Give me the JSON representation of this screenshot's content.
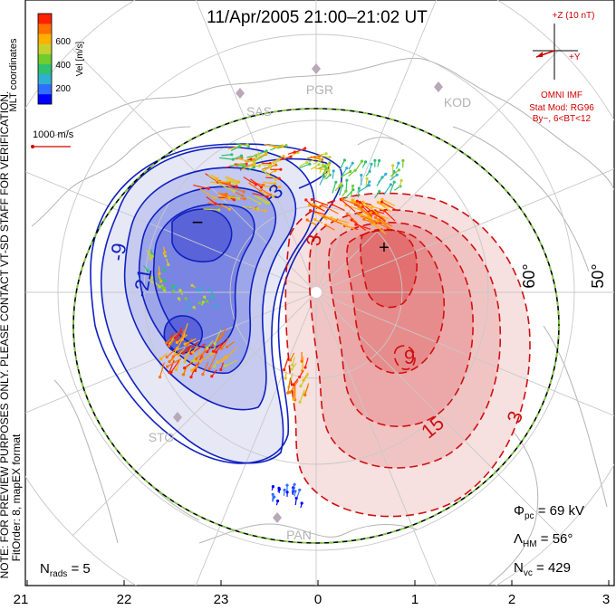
{
  "title": "11/Apr/2005 21:00–21:02 UT",
  "colorbar": {
    "ticks": [
      "600",
      "400",
      "200"
    ],
    "label": "Vel [m/s]",
    "colors": [
      "#0000ff",
      "#2f6fff",
      "#2fb0d0",
      "#2fc070",
      "#70cc2f",
      "#c8d02f",
      "#ffb000",
      "#ff7000",
      "#ff2000"
    ]
  },
  "coord_label": "MLT coordinates",
  "scale_label": "1000 m/s",
  "preview_note": "NOTE: FOR PREVIEW PURPOSES ONLY. PLEASE CONTACT VT-SD STAFF FOR VERIFICATION.",
  "fit_note": "FitOrder: 8, mapEX format",
  "imf": {
    "z_label": "+Z (10 nT)",
    "y_label": "+Y",
    "source": "OMNI IMF",
    "model": "Stat Mod: RG96",
    "condition": "By−, 6<BT<12"
  },
  "radars": [
    "PGR",
    "KOD",
    "SAS",
    "STO",
    "PAN"
  ],
  "lat_labels": [
    "60°",
    "50°"
  ],
  "contour_labels": [
    "-9",
    "-21",
    "-3",
    "3",
    "9",
    "15",
    "3"
  ],
  "potential_min_marker": "−",
  "potential_max_marker": "+",
  "stats": {
    "phi_prefix": "Φ",
    "phi_sub": "pc",
    "phi_value": " = 69 kV",
    "lambda_prefix": "Λ",
    "lambda_sub": "HM",
    "lambda_value": " = 56°",
    "nvc_prefix": "N",
    "nvc_sub": "vc",
    "nvc_value": " = 429",
    "nrads_prefix": "N",
    "nrads_sub": "rads",
    "nrads_value": " = 5"
  },
  "mlt_ticks": [
    "21",
    "22",
    "23",
    "0",
    "1",
    "2",
    "3"
  ],
  "colors": {
    "negative": "#1020c0",
    "positive": "#d01010",
    "imf": "#d00000",
    "grid": "#c8c8c8",
    "coast": "#b4b4b4",
    "boundary_green": "#7ccf3a"
  }
}
